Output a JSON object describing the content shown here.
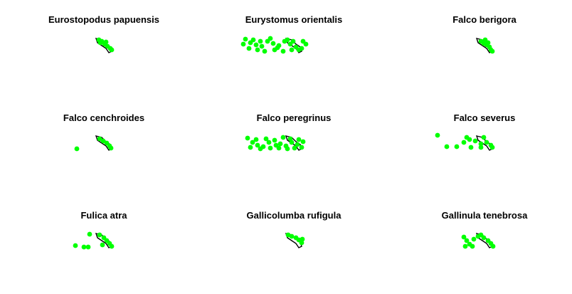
{
  "colors": {
    "points": "#00ff00",
    "outline": "#000000",
    "background": "#ffffff"
  },
  "panels": [
    {
      "title": "Eurostopodus papuensis"
    },
    {
      "title": "Eurystomus orientalis"
    },
    {
      "title": "Falco berigora"
    },
    {
      "title": "Falco cenchroides"
    },
    {
      "title": "Falco peregrinus"
    },
    {
      "title": "Falco severus"
    },
    {
      "title": "Fulica atra"
    },
    {
      "title": "Gallicolumba rufigula"
    },
    {
      "title": "Gallinula tenebrosa"
    }
  ],
  "chart_data": {
    "type": "scatter",
    "layout": "3x3 small multiples",
    "grid": false,
    "legend": "none",
    "panels": [
      {
        "title": "Eurostopodus papuensis",
        "spread": "narrow"
      },
      {
        "title": "Eurystomus orientalis",
        "spread": "wide"
      },
      {
        "title": "Falco berigora",
        "spread": "narrow"
      },
      {
        "title": "Falco cenchroides",
        "spread": "narrow-with-outlier"
      },
      {
        "title": "Falco peregrinus",
        "spread": "wide"
      },
      {
        "title": "Falco severus",
        "spread": "medium"
      },
      {
        "title": "Fulica atra",
        "spread": "scattered-west"
      },
      {
        "title": "Gallicolumba rufigula",
        "spread": "narrow"
      },
      {
        "title": "Gallinula tenebrosa",
        "spread": "medium"
      }
    ]
  }
}
